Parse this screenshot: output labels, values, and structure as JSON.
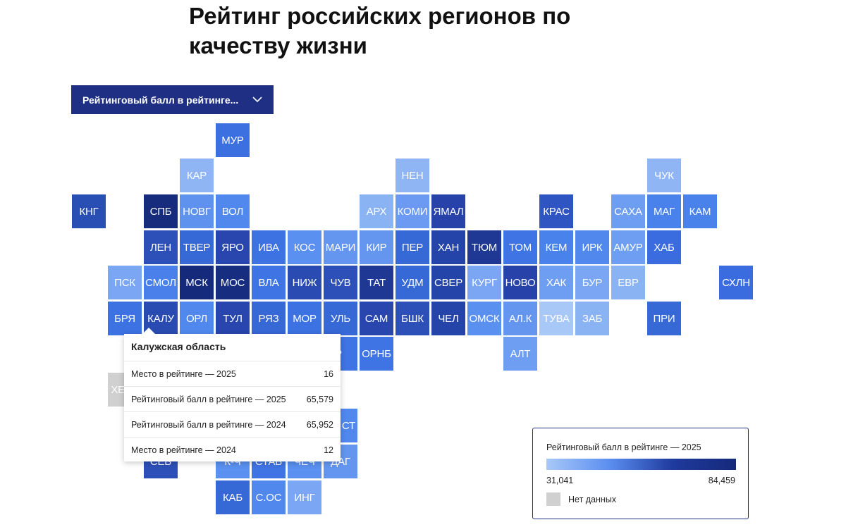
{
  "title": "Рейтинг российских регионов по качеству жизни",
  "metric_select": {
    "value": "Рейтинговый балл в рейтинге...",
    "icon": "chevron-down-icon"
  },
  "colors": {
    "accent": "#1f2f83",
    "scale_low": "#a8c8f8",
    "scale_high": "#152a7a",
    "no_data": "#d0d0d0"
  },
  "regions": [
    {
      "abbr": "МУР",
      "fill": "#3c6fe0"
    },
    {
      "abbr": "КАР",
      "fill": "#8fb5f4"
    },
    {
      "abbr": "НЕН",
      "fill": "#8fb5f4"
    },
    {
      "abbr": "ЧУК",
      "fill": "#8fb5f4"
    },
    {
      "abbr": "КНГ",
      "fill": "#2a4fb4"
    },
    {
      "abbr": "СПБ",
      "fill": "#172c7c"
    },
    {
      "abbr": "НОВГ",
      "fill": "#5f92ef"
    },
    {
      "abbr": "ВОЛ",
      "fill": "#5088ee"
    },
    {
      "abbr": "АРХ",
      "fill": "#8ab3f4"
    },
    {
      "abbr": "КОМИ",
      "fill": "#6c9af2"
    },
    {
      "abbr": "ЯМАЛ",
      "fill": "#2742a9"
    },
    {
      "abbr": "КРАС",
      "fill": "#2e55c2"
    },
    {
      "abbr": "САХА",
      "fill": "#6e9ef2"
    },
    {
      "abbr": "МАГ",
      "fill": "#4a82ec"
    },
    {
      "abbr": "КАМ",
      "fill": "#4a82ec"
    },
    {
      "abbr": "ЛЕН",
      "fill": "#2d4fb8"
    },
    {
      "abbr": "ТВЕР",
      "fill": "#3668d6"
    },
    {
      "abbr": "ЯРО",
      "fill": "#2846ae"
    },
    {
      "abbr": "ИВА",
      "fill": "#3c72e2"
    },
    {
      "abbr": "КОС",
      "fill": "#5a90ef"
    },
    {
      "abbr": "МАРИ",
      "fill": "#6496f0"
    },
    {
      "abbr": "КИР",
      "fill": "#6496f0"
    },
    {
      "abbr": "ПЕР",
      "fill": "#3668d6"
    },
    {
      "abbr": "ХАН",
      "fill": "#2444a9"
    },
    {
      "abbr": "ТЮМ",
      "fill": "#1e3894"
    },
    {
      "abbr": "ТОМ",
      "fill": "#3f74e4"
    },
    {
      "abbr": "КЕМ",
      "fill": "#4a82ec"
    },
    {
      "abbr": "ИРК",
      "fill": "#5088ee"
    },
    {
      "abbr": "АМУР",
      "fill": "#6e9ef2"
    },
    {
      "abbr": "ХАБ",
      "fill": "#3a6ce0"
    },
    {
      "abbr": "ПСК",
      "fill": "#7aa6f3"
    },
    {
      "abbr": "СМОЛ",
      "fill": "#4a80ea"
    },
    {
      "abbr": "МСК",
      "fill": "#152a7a"
    },
    {
      "abbr": "МОС",
      "fill": "#172e80"
    },
    {
      "abbr": "ВЛА",
      "fill": "#3f74e4"
    },
    {
      "abbr": "НИЖ",
      "fill": "#2a4cb2"
    },
    {
      "abbr": "ЧУВ",
      "fill": "#2d50b8"
    },
    {
      "abbr": "ТАТ",
      "fill": "#1e3894"
    },
    {
      "abbr": "УДМ",
      "fill": "#3668d6"
    },
    {
      "abbr": "СВЕР",
      "fill": "#2444a9"
    },
    {
      "abbr": "КУРГ",
      "fill": "#7aa6f3"
    },
    {
      "abbr": "НОВО",
      "fill": "#2742a9"
    },
    {
      "abbr": "ХАК",
      "fill": "#6e9ef2"
    },
    {
      "abbr": "БУР",
      "fill": "#7aa6f3"
    },
    {
      "abbr": "ЕВР",
      "fill": "#8ab3f4"
    },
    {
      "abbr": "СХЛН",
      "fill": "#3a6ce0"
    },
    {
      "abbr": "БРЯ",
      "fill": "#3c72e2"
    },
    {
      "abbr": "КАЛУ",
      "fill": "#2a4cb2"
    },
    {
      "abbr": "ОРЛ",
      "fill": "#5088ee"
    },
    {
      "abbr": "ТУЛ",
      "fill": "#2846ae"
    },
    {
      "abbr": "РЯЗ",
      "fill": "#3668d6"
    },
    {
      "abbr": "МОР",
      "fill": "#3c72e2"
    },
    {
      "abbr": "УЛЬ",
      "fill": "#3668d6"
    },
    {
      "abbr": "САМ",
      "fill": "#2846ae"
    },
    {
      "abbr": "БШК",
      "fill": "#2d50b8"
    },
    {
      "abbr": "ЧЕЛ",
      "fill": "#2444a9"
    },
    {
      "abbr": "ОМСК",
      "fill": "#5a90ef"
    },
    {
      "abbr": "АЛ.К",
      "fill": "#6496f0"
    },
    {
      "abbr": "ТУВА",
      "fill": "#a8c8f8"
    },
    {
      "abbr": "ЗАБ",
      "fill": "#8ab3f4"
    },
    {
      "abbr": "ПРИ",
      "fill": "#3668d6"
    },
    {
      "abbr": "АР",
      "fill": "#3f74e4"
    },
    {
      "abbr": "ОРНБ",
      "fill": "#3f74e4"
    },
    {
      "abbr": "АЛТ",
      "fill": "#6e9ef2"
    },
    {
      "abbr": "ХЕ",
      "fill": "#d0d0d0"
    },
    {
      "abbr": "СТ",
      "fill": "#5088ee"
    },
    {
      "abbr": "СЕВ",
      "fill": "#2d50b8"
    },
    {
      "abbr": "К-Ч",
      "fill": "#5a90ef"
    },
    {
      "abbr": "СТАВ",
      "fill": "#3f74e4"
    },
    {
      "abbr": "ЧЕЧ",
      "fill": "#5a90ef"
    },
    {
      "abbr": "ДАГ",
      "fill": "#6496f0"
    },
    {
      "abbr": "КАБ",
      "fill": "#3668d6"
    },
    {
      "abbr": "С.ОС",
      "fill": "#5088ee"
    },
    {
      "abbr": "ИНГ",
      "fill": "#7aa6f3"
    }
  ],
  "tooltip": {
    "region": "Калужская область",
    "rows": [
      {
        "label": "Место в рейтинге — 2025",
        "value": "16"
      },
      {
        "label": "Рейтинговый балл в рейтинге — 2025",
        "value": "65,579"
      },
      {
        "label": "Рейтинговый балл в рейтинге — 2024",
        "value": "65,952"
      },
      {
        "label": "Место в рейтинге — 2024",
        "value": "12"
      }
    ]
  },
  "legend": {
    "title": "Рейтинговый балл в рейтинге — 2025",
    "min": "31,041",
    "max": "84,459",
    "no_data": "Нет данных"
  }
}
